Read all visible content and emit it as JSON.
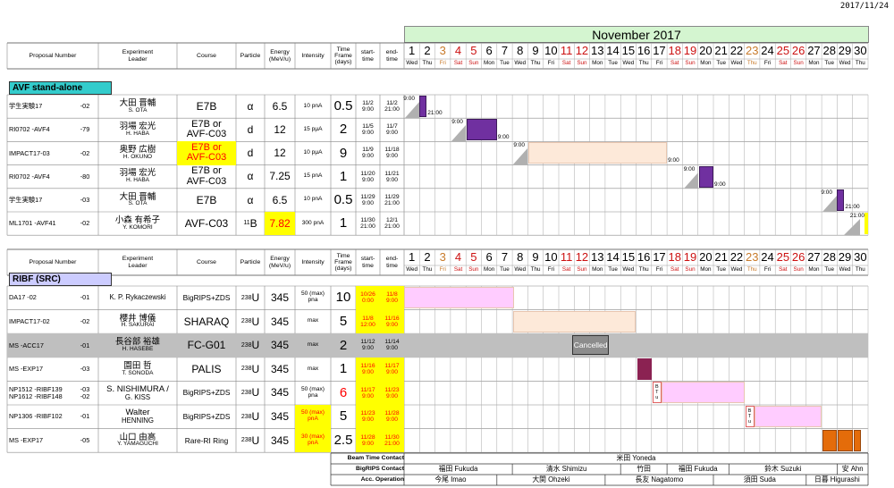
{
  "date_stamp": "2017/11/24",
  "month": "November 2017",
  "days": [
    {
      "d": "1",
      "w": "Wed",
      "t": "normal"
    },
    {
      "d": "2",
      "w": "Thu",
      "t": "normal"
    },
    {
      "d": "3",
      "w": "Fri",
      "t": "holiday"
    },
    {
      "d": "4",
      "w": "Sat",
      "t": "sunday"
    },
    {
      "d": "5",
      "w": "Sun",
      "t": "sunday"
    },
    {
      "d": "6",
      "w": "Mon",
      "t": "normal"
    },
    {
      "d": "7",
      "w": "Tue",
      "t": "normal"
    },
    {
      "d": "8",
      "w": "Wed",
      "t": "normal"
    },
    {
      "d": "9",
      "w": "Thu",
      "t": "normal"
    },
    {
      "d": "10",
      "w": "Fri",
      "t": "normal"
    },
    {
      "d": "11",
      "w": "Sat",
      "t": "sunday"
    },
    {
      "d": "12",
      "w": "Sun",
      "t": "sunday"
    },
    {
      "d": "13",
      "w": "Mon",
      "t": "normal"
    },
    {
      "d": "14",
      "w": "Tue",
      "t": "normal"
    },
    {
      "d": "15",
      "w": "Wed",
      "t": "normal"
    },
    {
      "d": "16",
      "w": "Thu",
      "t": "normal"
    },
    {
      "d": "17",
      "w": "Fri",
      "t": "normal"
    },
    {
      "d": "18",
      "w": "Sat",
      "t": "sunday"
    },
    {
      "d": "19",
      "w": "Sun",
      "t": "sunday"
    },
    {
      "d": "20",
      "w": "Mon",
      "t": "normal"
    },
    {
      "d": "21",
      "w": "Tue",
      "t": "normal"
    },
    {
      "d": "22",
      "w": "Wed",
      "t": "normal"
    },
    {
      "d": "23",
      "w": "Thu",
      "t": "holiday"
    },
    {
      "d": "24",
      "w": "Fri",
      "t": "normal"
    },
    {
      "d": "25",
      "w": "Sat",
      "t": "sunday"
    },
    {
      "d": "26",
      "w": "Sun",
      "t": "sunday"
    },
    {
      "d": "27",
      "w": "Mon",
      "t": "normal"
    },
    {
      "d": "28",
      "w": "Tue",
      "t": "normal"
    },
    {
      "d": "29",
      "w": "Wed",
      "t": "normal"
    },
    {
      "d": "30",
      "w": "Thu",
      "t": "normal"
    }
  ],
  "headers": {
    "proposal": "Proposal Number",
    "leader": "Experiment Leader",
    "course": "Course",
    "particle": "Particle",
    "energy": "Energy (MeV/u)",
    "intensity": "Intensity",
    "timeframe": "Time Frame (days)",
    "start": "start-time",
    "end": "end-time"
  },
  "avf": {
    "label": "AVF stand-alone",
    "label_color": "#33cccc",
    "rows": [
      {
        "prop": "学生実験17",
        "num": "-02",
        "leader": "大田 晋輔",
        "leader_en": "S. OTA",
        "course": "E7B",
        "particle": "α",
        "energy": "6.5",
        "intensity": "10 pnA",
        "days": "0.5",
        "start": "11/2\n9:00",
        "end": "11/2\n21:00",
        "s_time": "9:00",
        "e_time": "21:00"
      },
      {
        "prop": "RI0702 -AVF4",
        "num": "-79",
        "leader": "羽場 宏光",
        "leader_en": "H. HABA",
        "course": "E7B or\nAVF-C03",
        "particle": "d",
        "energy": "12",
        "intensity": "15 pμA",
        "days": "2",
        "start": "11/5\n9:00",
        "end": "11/7\n9:00",
        "s_time": "9:00",
        "e_time": "9:00"
      },
      {
        "prop": "IMPACT17-03",
        "num": "-02",
        "leader": "奥野 広樹",
        "leader_en": "H. OKUNO",
        "course": "E7B or\nAVF-C03",
        "particle": "d",
        "energy": "12",
        "intensity": "10 pμA",
        "days": "9",
        "start": "11/9\n9:00",
        "end": "11/18\n9:00",
        "s_time": "9:00",
        "e_time": "9:00"
      },
      {
        "prop": "RI0702 -AVF4",
        "num": "-80",
        "leader": "羽場 宏光",
        "leader_en": "H. HABA",
        "course": "E7B or\nAVF-C03",
        "particle": "α",
        "energy": "7.25",
        "intensity": "15 pnA",
        "days": "1",
        "start": "11/20\n9:00",
        "end": "11/21\n9:00",
        "s_time": "9:00",
        "e_time": "9:00"
      },
      {
        "prop": "学生実験17",
        "num": "-03",
        "leader": "大田 晋輔",
        "leader_en": "S. OTA",
        "course": "E7B",
        "particle": "α",
        "energy": "6.5",
        "intensity": "10 pnA",
        "days": "0.5",
        "start": "11/29\n9:00",
        "end": "11/29\n21:00",
        "s_time": "9:00",
        "e_time": "21:00"
      },
      {
        "prop": "ML1701 -AVF41",
        "num": "-02",
        "leader": "小森 有希子",
        "leader_en": "Y. KOMORI",
        "course": "AVF-C03",
        "particle": "11B",
        "energy": "7.82",
        "intensity": "300 pnA",
        "days": "1",
        "start": "11/30\n21:00",
        "end": "12/1\n21:00",
        "s_time": "21:00",
        "e_time": ""
      }
    ]
  },
  "ribf": {
    "label": "RIBF (SRC)",
    "label_color": "#ccccff",
    "rows": [
      {
        "prop": "DA17 -02",
        "num": "-01",
        "leader": "K. P. Rykaczewski",
        "leader_en": "",
        "course": "BigRIPS+ZDS",
        "particle": "238U",
        "energy": "345",
        "intensity": "50 (max)\npna",
        "days": "10",
        "start": "10/26\n0:00",
        "end": "11/8\n9:00"
      },
      {
        "prop": "IMPACT17-02",
        "num": "-02",
        "leader": "櫻井 博儀",
        "leader_en": "H. SAKURAI",
        "course": "SHARAQ",
        "particle": "238U",
        "energy": "345",
        "intensity": "max",
        "days": "5",
        "start": "11/8\n12:00",
        "end": "11/16\n9:00"
      },
      {
        "prop": "MS -ACC17",
        "num": "-01",
        "leader": "長谷部 裕雄",
        "leader_en": "H. HASEBE",
        "course": "FC-G01",
        "particle": "238U",
        "energy": "345",
        "intensity": "max",
        "days": "2",
        "start": "11/12\n9:00",
        "end": "11/14\n9:00",
        "cancel": "Cancelled"
      },
      {
        "prop": "MS -EXP17",
        "num": "-03",
        "leader": "園田 哲",
        "leader_en": "T. SONODA",
        "course": "PALIS",
        "particle": "238U",
        "energy": "345",
        "intensity": "max",
        "days": "1",
        "start": "11/16\n9:00",
        "end": "11/17\n9:00"
      },
      {
        "prop": "NP1512 -RIBF139\nNP1612 -RIBF148",
        "num": "-03\n-02",
        "leader": "S. NISHIMURA /",
        "leader_en": "G. KISS",
        "course": "BigRIPS+ZDS",
        "particle": "238U",
        "energy": "345",
        "intensity": "50 (max)\npna",
        "days": "6",
        "start": "11/17\n9:00",
        "end": "11/23\n9:00",
        "btu": "B\nT\nu"
      },
      {
        "prop": "NP1306 -RIBF102",
        "num": "-01",
        "leader": "Walter",
        "leader_en": "HENNING",
        "course": "BigRIPS+ZDS",
        "particle": "238U",
        "energy": "345",
        "intensity": "50 (max)\npnA",
        "days": "5",
        "start": "11/23\n9:00",
        "end": "11/28\n9:00",
        "btu": "B\nT\nu"
      },
      {
        "prop": "MS -EXP17",
        "num": "-05",
        "leader": "山口 由高",
        "leader_en": "Y. YAMAGUCHI",
        "course": "Rare-RI Ring",
        "particle": "238U",
        "energy": "345",
        "intensity": "30 (max)\npnA",
        "days": "2.5",
        "start": "11/28\n9:00",
        "end": "11/30\n21:00"
      }
    ]
  },
  "contacts": [
    {
      "label": "Beam Time Contact",
      "entries": [
        {
          "text": "米田 Yoneda",
          "span": [
            1,
            30
          ]
        }
      ]
    },
    {
      "label": "BigRIPS Contact",
      "entries": [
        {
          "text": "福田 Fukuda",
          "span": [
            1,
            7
          ]
        },
        {
          "text": "清水 Shimizu",
          "span": [
            8,
            14
          ]
        },
        {
          "text": "竹田",
          "span": [
            15,
            17
          ]
        },
        {
          "text": "福田 Fukuda",
          "span": [
            18,
            21
          ]
        },
        {
          "text": "鈴木 Suzuki",
          "span": [
            22,
            28
          ]
        },
        {
          "text": "安 Ahn",
          "span": [
            29,
            30
          ]
        }
      ]
    },
    {
      "label": "Acc. Operation",
      "entries": [
        {
          "text": "今尾 Imao",
          "span": [
            1,
            6
          ]
        },
        {
          "text": "大関 Ohzeki",
          "span": [
            7,
            13
          ]
        },
        {
          "text": "長友 Nagatomo",
          "span": [
            14,
            20
          ]
        },
        {
          "text": "須田 Suda",
          "span": [
            21,
            26
          ]
        },
        {
          "text": "日暮 Higurashi",
          "span": [
            27,
            30
          ]
        }
      ]
    }
  ],
  "colors": {
    "purple": "#7030a0",
    "peach": "#fde9d9",
    "pink": "#ffccff",
    "maroon": "#8b2252",
    "orange": "#e46c0a",
    "grey_row": "#bfbfbf",
    "yellow": "#ffff00",
    "red_text": "#ff0000",
    "sunday": "#cc1111",
    "holiday": "#c87a2a"
  }
}
